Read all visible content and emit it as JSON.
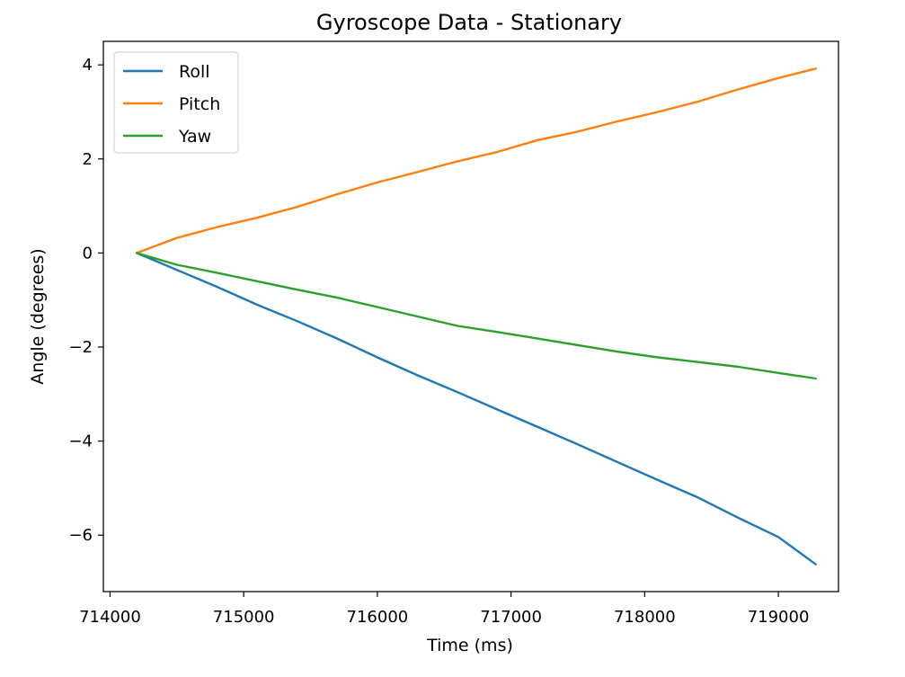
{
  "chart_data": {
    "type": "line",
    "title": "Gyroscope Data - Stationary",
    "xlabel": "Time (ms)",
    "ylabel": "Angle (degrees)",
    "xlim": [
      713950,
      719450
    ],
    "ylim": [
      -7.2,
      4.5
    ],
    "xticks": [
      714000,
      715000,
      716000,
      717000,
      718000,
      719000
    ],
    "xtick_labels": [
      "714000",
      "715000",
      "716000",
      "717000",
      "718000",
      "719000"
    ],
    "yticks": [
      4,
      2,
      0,
      -2,
      -4,
      -6
    ],
    "ytick_labels": [
      "4",
      "2",
      "0",
      "−2",
      "−4",
      "−6"
    ],
    "grid": false,
    "legend_position": "upper-left",
    "series": [
      {
        "name": "Roll",
        "color": "#1f77b4",
        "x": [
          714200,
          714500,
          714800,
          715100,
          715400,
          715700,
          716000,
          716300,
          716600,
          716900,
          717200,
          717500,
          717800,
          718100,
          718400,
          718700,
          719000,
          719280
        ],
        "y": [
          0.0,
          -0.36,
          -0.72,
          -1.1,
          -1.45,
          -1.82,
          -2.22,
          -2.6,
          -2.96,
          -3.33,
          -3.7,
          -4.07,
          -4.45,
          -4.83,
          -5.2,
          -5.63,
          -6.04,
          -6.62
        ]
      },
      {
        "name": "Pitch",
        "color": "#ff7f0e",
        "x": [
          714200,
          714500,
          714800,
          715100,
          715400,
          715700,
          716000,
          716300,
          716600,
          716900,
          717200,
          717500,
          717800,
          718100,
          718400,
          718700,
          719000,
          719280
        ],
        "y": [
          0.0,
          0.32,
          0.55,
          0.75,
          0.98,
          1.25,
          1.5,
          1.72,
          1.95,
          2.15,
          2.4,
          2.58,
          2.8,
          3.0,
          3.22,
          3.48,
          3.72,
          3.92
        ]
      },
      {
        "name": "Yaw",
        "color": "#2ca02c",
        "x": [
          714200,
          714500,
          714800,
          715100,
          715400,
          715700,
          716000,
          716300,
          716600,
          716900,
          717200,
          717500,
          717800,
          718100,
          718400,
          718700,
          719000,
          719280
        ],
        "y": [
          0.0,
          -0.25,
          -0.42,
          -0.6,
          -0.78,
          -0.95,
          -1.15,
          -1.35,
          -1.55,
          -1.68,
          -1.82,
          -1.96,
          -2.1,
          -2.22,
          -2.32,
          -2.42,
          -2.55,
          -2.67
        ]
      }
    ]
  }
}
